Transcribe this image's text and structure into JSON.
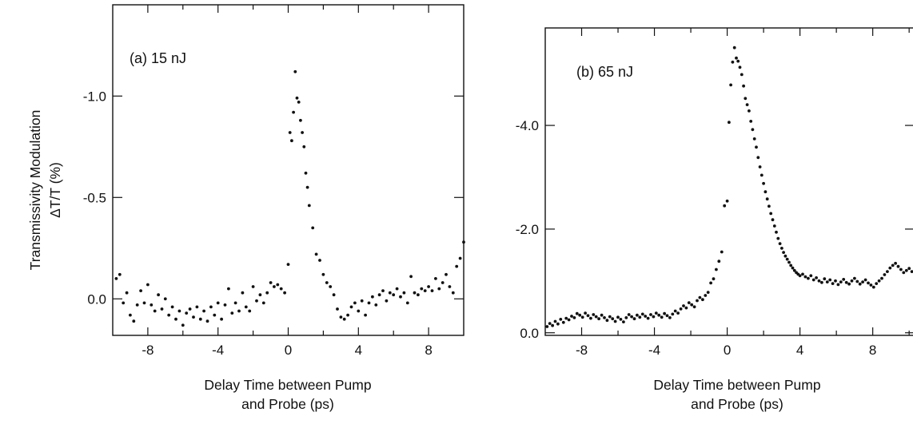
{
  "chart_data": [
    {
      "type": "scatter",
      "panel_label": "(a) 15 nJ",
      "title": "",
      "ylabel_line1": "Transmissivity Modulation",
      "ylabel_line2": "ΔT/T (%)",
      "xlabel_line1": "Delay Time between Pump",
      "xlabel_line2": "and Probe (ps)",
      "xlim": [
        -10,
        10
      ],
      "ylim": [
        0.18,
        -1.45
      ],
      "y_inverted": true,
      "xticks": [
        -8,
        -4,
        0,
        4,
        8
      ],
      "xtick_labels": [
        "-8",
        "-4",
        "0",
        "4",
        "8"
      ],
      "yticks": [
        0.0,
        -0.5,
        -1.0
      ],
      "ytick_labels": [
        "0.0",
        "-0.5",
        "-1.0"
      ],
      "grid": false,
      "legend": "none",
      "series": [
        {
          "x": [
            -9.8,
            -9.6,
            -9.4,
            -9.2,
            -9.0,
            -8.8,
            -8.6,
            -8.4,
            -8.2,
            -8.0,
            -7.8,
            -7.6,
            -7.4,
            -7.2,
            -7.0,
            -6.8,
            -6.6,
            -6.4,
            -6.2,
            -6.0,
            -5.8,
            -5.6,
            -5.4,
            -5.2,
            -5.0,
            -4.8,
            -4.6,
            -4.4,
            -4.2,
            -4.0,
            -3.8,
            -3.6,
            -3.4,
            -3.2,
            -3.0,
            -2.8,
            -2.6,
            -2.4,
            -2.2,
            -2.0,
            -1.8,
            -1.6,
            -1.4,
            -1.2,
            -1.0,
            -0.8,
            -0.6,
            -0.4,
            -0.2,
            0.0,
            0.1,
            0.2,
            0.3,
            0.4,
            0.5,
            0.6,
            0.7,
            0.8,
            0.9,
            1.0,
            1.1,
            1.2,
            1.4,
            1.6,
            1.8,
            2.0,
            2.2,
            2.4,
            2.6,
            2.8,
            3.0,
            3.2,
            3.4,
            3.6,
            3.8,
            4.0,
            4.2,
            4.4,
            4.6,
            4.8,
            5.0,
            5.2,
            5.4,
            5.6,
            5.8,
            6.0,
            6.2,
            6.4,
            6.6,
            6.8,
            7.0,
            7.2,
            7.4,
            7.6,
            7.8,
            8.0,
            8.2,
            8.4,
            8.6,
            8.8,
            9.0,
            9.2,
            9.4,
            9.6,
            9.8,
            10.0
          ],
          "y": [
            -0.1,
            -0.12,
            0.02,
            -0.03,
            0.08,
            0.11,
            0.03,
            -0.04,
            0.02,
            -0.07,
            0.03,
            0.06,
            -0.02,
            0.05,
            0.0,
            0.08,
            0.04,
            0.1,
            0.06,
            0.13,
            0.07,
            0.05,
            0.09,
            0.04,
            0.1,
            0.06,
            0.11,
            0.04,
            0.08,
            0.02,
            0.1,
            0.03,
            -0.05,
            0.07,
            0.02,
            0.06,
            -0.03,
            0.04,
            0.06,
            -0.06,
            0.01,
            -0.02,
            0.02,
            -0.03,
            -0.08,
            -0.06,
            -0.07,
            -0.05,
            -0.03,
            -0.17,
            -0.82,
            -0.78,
            -0.92,
            -1.12,
            -0.99,
            -0.97,
            -0.88,
            -0.82,
            -0.75,
            -0.62,
            -0.55,
            -0.46,
            -0.35,
            -0.22,
            -0.19,
            -0.12,
            -0.08,
            -0.06,
            -0.02,
            0.05,
            0.09,
            0.1,
            0.08,
            0.04,
            0.02,
            0.06,
            0.01,
            0.08,
            0.02,
            -0.01,
            0.03,
            -0.02,
            -0.04,
            0.01,
            -0.03,
            -0.02,
            -0.05,
            -0.01,
            -0.03,
            0.02,
            -0.11,
            -0.03,
            -0.02,
            -0.05,
            -0.04,
            -0.06,
            -0.04,
            -0.1,
            -0.05,
            -0.08,
            -0.12,
            -0.06,
            -0.03,
            -0.16,
            -0.2,
            -0.28
          ]
        }
      ]
    },
    {
      "type": "scatter",
      "panel_label": "(b) 65 nJ",
      "title": "",
      "ylabel_line1": "",
      "ylabel_line2": "",
      "xlabel_line1": "Delay Time between Pump",
      "xlabel_line2": "and Probe (ps)",
      "xlim": [
        -10,
        10.3
      ],
      "ylim": [
        0.05,
        -5.88
      ],
      "y_inverted": true,
      "xticks": [
        -8,
        -4,
        0,
        4,
        8
      ],
      "xtick_labels": [
        "-8",
        "-4",
        "0",
        "4",
        "8"
      ],
      "yticks": [
        0.0,
        -2.0,
        -4.0
      ],
      "ytick_labels": [
        "0.0",
        "-2.0",
        "-4.0"
      ],
      "grid": false,
      "legend": "none",
      "series": [
        {
          "x": [
            -9.9,
            -9.75,
            -9.6,
            -9.45,
            -9.3,
            -9.15,
            -9.0,
            -8.85,
            -8.7,
            -8.55,
            -8.4,
            -8.25,
            -8.1,
            -7.95,
            -7.8,
            -7.65,
            -7.5,
            -7.35,
            -7.2,
            -7.05,
            -6.9,
            -6.75,
            -6.6,
            -6.45,
            -6.3,
            -6.15,
            -6.0,
            -5.85,
            -5.7,
            -5.55,
            -5.4,
            -5.25,
            -5.1,
            -4.95,
            -4.8,
            -4.65,
            -4.5,
            -4.35,
            -4.2,
            -4.05,
            -3.9,
            -3.75,
            -3.6,
            -3.45,
            -3.3,
            -3.15,
            -3.0,
            -2.85,
            -2.7,
            -2.55,
            -2.4,
            -2.25,
            -2.1,
            -1.95,
            -1.8,
            -1.65,
            -1.5,
            -1.35,
            -1.2,
            -1.05,
            -0.9,
            -0.75,
            -0.6,
            -0.45,
            -0.3,
            -0.15,
            0.0,
            0.1,
            0.2,
            0.3,
            0.4,
            0.5,
            0.6,
            0.7,
            0.8,
            0.9,
            1.0,
            1.1,
            1.2,
            1.3,
            1.4,
            1.5,
            1.6,
            1.7,
            1.8,
            1.9,
            2.0,
            2.1,
            2.2,
            2.3,
            2.4,
            2.5,
            2.6,
            2.7,
            2.8,
            2.9,
            3.0,
            3.1,
            3.2,
            3.3,
            3.4,
            3.5,
            3.6,
            3.7,
            3.8,
            3.9,
            4.0,
            4.15,
            4.3,
            4.45,
            4.6,
            4.75,
            4.9,
            5.05,
            5.2,
            5.35,
            5.5,
            5.65,
            5.8,
            5.95,
            6.1,
            6.25,
            6.4,
            6.55,
            6.7,
            6.85,
            7.0,
            7.15,
            7.3,
            7.45,
            7.6,
            7.75,
            7.9,
            8.05,
            8.2,
            8.35,
            8.5,
            8.65,
            8.8,
            8.95,
            9.1,
            9.25,
            9.4,
            9.55,
            9.7,
            9.85,
            10.0,
            10.15
          ],
          "y": [
            -0.12,
            -0.18,
            -0.14,
            -0.22,
            -0.17,
            -0.26,
            -0.2,
            -0.28,
            -0.25,
            -0.32,
            -0.29,
            -0.37,
            -0.34,
            -0.3,
            -0.38,
            -0.33,
            -0.28,
            -0.35,
            -0.31,
            -0.27,
            -0.34,
            -0.29,
            -0.24,
            -0.31,
            -0.27,
            -0.22,
            -0.3,
            -0.26,
            -0.21,
            -0.29,
            -0.35,
            -0.31,
            -0.27,
            -0.34,
            -0.3,
            -0.36,
            -0.32,
            -0.28,
            -0.35,
            -0.31,
            -0.38,
            -0.34,
            -0.3,
            -0.37,
            -0.33,
            -0.29,
            -0.36,
            -0.42,
            -0.38,
            -0.46,
            -0.52,
            -0.48,
            -0.58,
            -0.54,
            -0.5,
            -0.62,
            -0.68,
            -0.64,
            -0.72,
            -0.78,
            -0.96,
            -1.04,
            -1.22,
            -1.38,
            -1.56,
            -2.45,
            -2.54,
            -4.06,
            -4.78,
            -5.22,
            -5.5,
            -5.3,
            -5.24,
            -5.12,
            -4.98,
            -4.76,
            -4.52,
            -4.4,
            -4.28,
            -4.08,
            -3.92,
            -3.74,
            -3.58,
            -3.38,
            -3.2,
            -3.04,
            -2.88,
            -2.72,
            -2.58,
            -2.44,
            -2.3,
            -2.18,
            -2.06,
            -1.94,
            -1.82,
            -1.72,
            -1.63,
            -1.55,
            -1.48,
            -1.42,
            -1.36,
            -1.3,
            -1.25,
            -1.2,
            -1.16,
            -1.13,
            -1.1,
            -1.13,
            -1.08,
            -1.05,
            -1.1,
            -1.02,
            -1.06,
            -1.0,
            -0.97,
            -1.04,
            -0.98,
            -1.02,
            -0.95,
            -1.0,
            -0.93,
            -0.98,
            -1.03,
            -0.97,
            -0.94,
            -1.0,
            -1.05,
            -0.99,
            -0.94,
            -0.98,
            -1.02,
            -0.96,
            -0.92,
            -0.88,
            -0.95,
            -1.0,
            -1.05,
            -1.12,
            -1.18,
            -1.25,
            -1.3,
            -1.34,
            -1.28,
            -1.22,
            -1.16,
            -1.2,
            -1.24,
            -1.18
          ]
        }
      ]
    }
  ]
}
